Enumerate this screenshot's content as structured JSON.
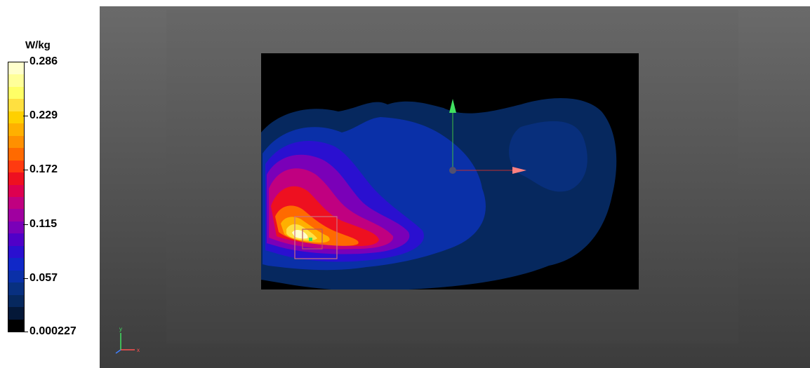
{
  "chart_data": {
    "type": "heatmap",
    "title": "",
    "colorbar": {
      "unit": "W/kg",
      "ticks": [
        "0.286",
        "0.229",
        "0.172",
        "0.115",
        "0.057",
        "0.000227"
      ],
      "range": [
        0.000227,
        0.286
      ],
      "colors": [
        "#ffffcc",
        "#ffff99",
        "#ffff66",
        "#ffe040",
        "#ffd000",
        "#ffb000",
        "#ff9000",
        "#ff6a00",
        "#ff3a10",
        "#ee1020",
        "#dd0050",
        "#c00080",
        "#a000a0",
        "#7a00b8",
        "#5000c8",
        "#2a10d0",
        "#1028c8",
        "#0a30a8",
        "#083080",
        "#06285e",
        "#041838",
        "#000000"
      ]
    },
    "scan_area_bounds": {
      "x": [
        0,
        1
      ],
      "y": [
        0,
        1
      ]
    },
    "peak_location_label": "",
    "axes": {
      "x_label": "x",
      "y_label": "y"
    }
  }
}
